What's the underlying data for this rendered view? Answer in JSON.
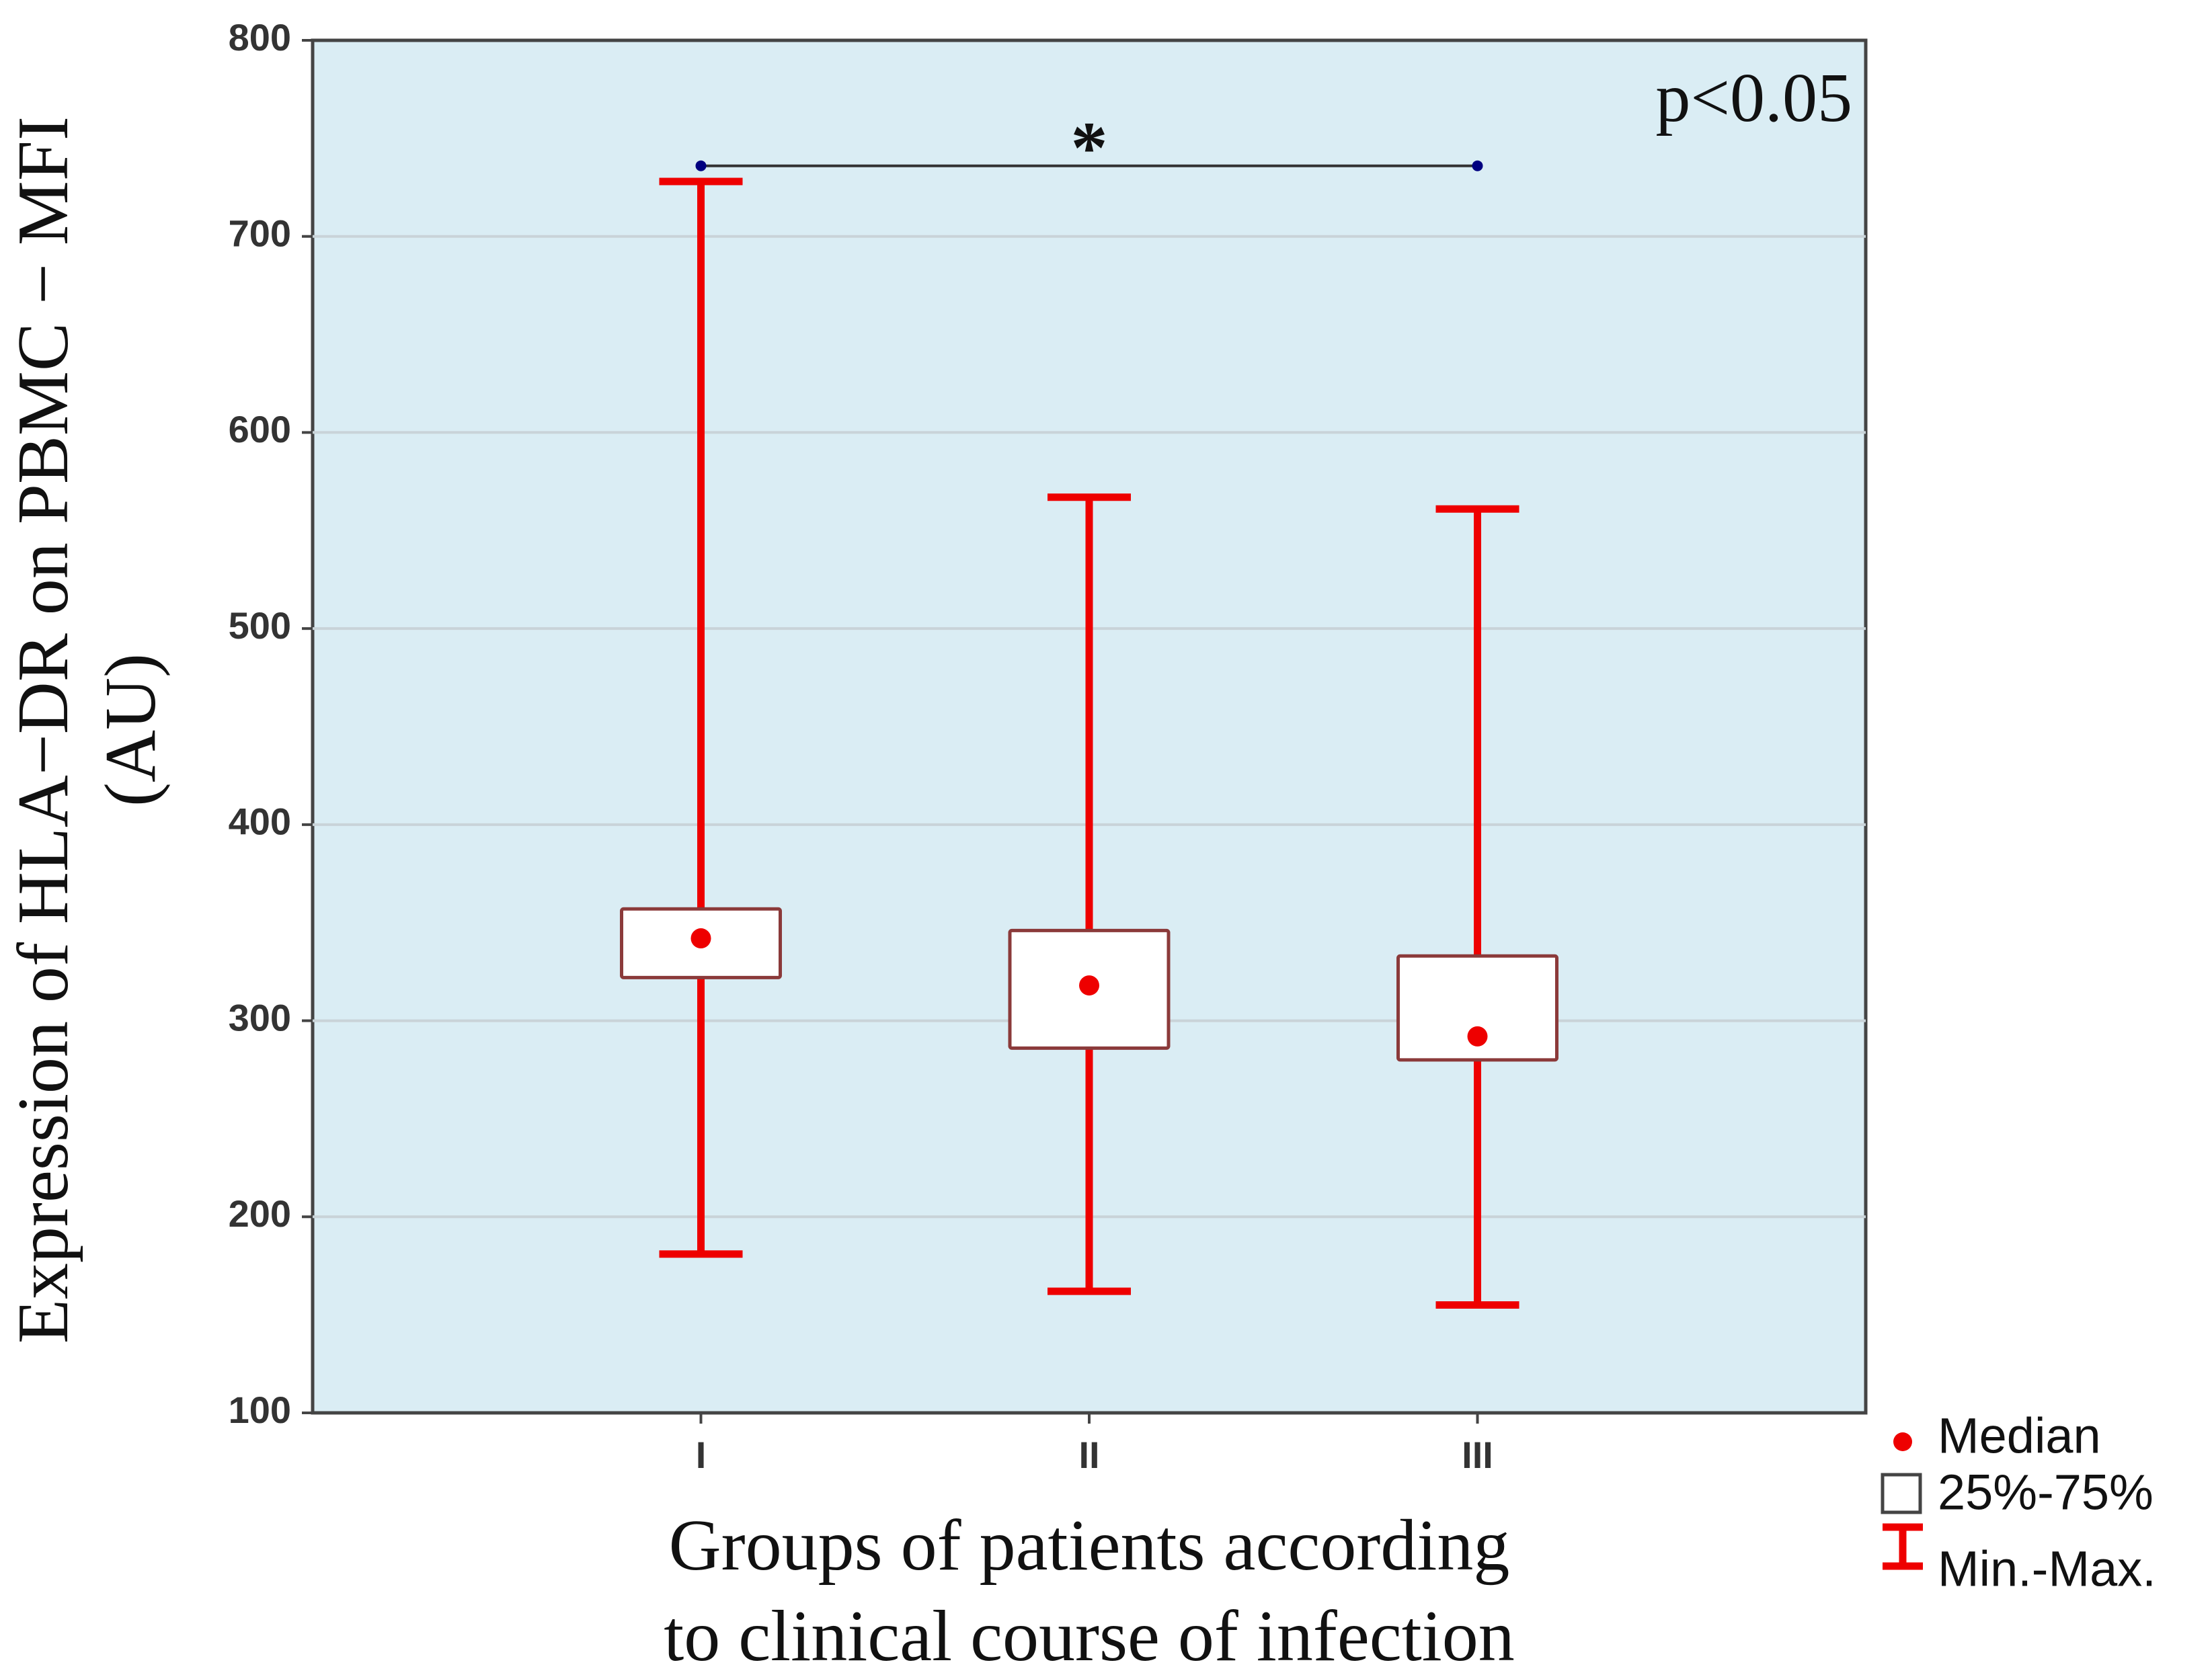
{
  "chart_data": {
    "type": "box",
    "title": "",
    "xlabel": [
      "Groups of patients according",
      "to clinical  course of infection"
    ],
    "ylabel": [
      "Expression of HLA−DR on PBMC − MFI",
      "(AU)"
    ],
    "ylim": [
      100,
      800
    ],
    "yticks": [
      100,
      200,
      300,
      400,
      500,
      600,
      700,
      800
    ],
    "grid": true,
    "categories": [
      "I",
      "II",
      "III"
    ],
    "series": [
      {
        "category": "I",
        "min": 181,
        "q1": 322,
        "median": 342,
        "q3": 357,
        "max": 728
      },
      {
        "category": "II",
        "min": 162,
        "q1": 286,
        "median": 318,
        "q3": 346,
        "max": 567
      },
      {
        "category": "III",
        "min": 155,
        "q1": 280,
        "median": 292,
        "q3": 333,
        "max": 561
      }
    ],
    "annotations": {
      "pvalue": "p<0.05",
      "significance": {
        "from": "I",
        "to": "III",
        "y": 736,
        "label": "*"
      }
    },
    "legend": {
      "placement": "bottom-right",
      "items": [
        {
          "label": "Median",
          "symbol": "dot"
        },
        {
          "label": "25%-75%",
          "symbol": "box"
        },
        {
          "label": "Min.-Max.",
          "symbol": "whisker"
        }
      ]
    },
    "colors": {
      "plot_bg": "#daedf4",
      "whisker": "#ee0000",
      "median": "#ee0000",
      "box_fill": "#ffffff",
      "box_edge": "#8b3a3a",
      "grid": "#c9d3d8",
      "sig_line": "#333333",
      "sig_dot": "#000080"
    }
  }
}
